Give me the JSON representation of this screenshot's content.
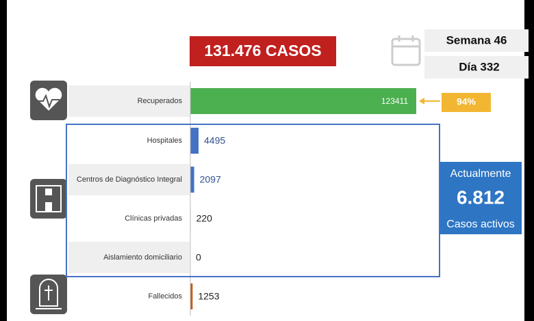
{
  "header": {
    "total": "131.476 CASOS",
    "week": "Semana 46",
    "day": "Día 332"
  },
  "chart_data": {
    "type": "bar",
    "orientation": "horizontal",
    "categories": [
      "Recuperados",
      "Hospitales",
      "Centros de Diagnóstico Integral",
      "Clínicas privadas",
      "Aislamiento domiciliario",
      "Fallecidos"
    ],
    "values": [
      123411,
      4495,
      2097,
      220,
      0,
      1253
    ],
    "colors": [
      "#4caf50",
      "#4472c4",
      "#4472c4",
      "#a5a5a5",
      "#a5a5a5",
      "#c55a11"
    ]
  },
  "recovered_share": "94%",
  "active": {
    "title": "Actualmente",
    "value": "6.812",
    "caption": "Casos activos"
  }
}
